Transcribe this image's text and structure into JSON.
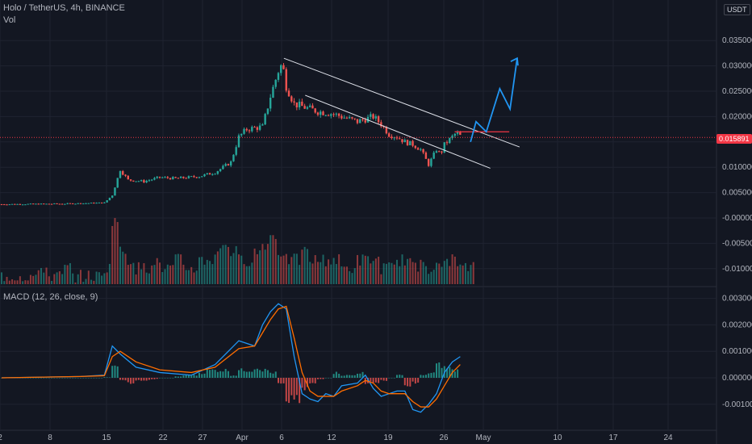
{
  "header": {
    "symbol_line": "Holo / TetherUS, 4h, BINANCE",
    "vol_label": "Vol",
    "macd_label": "MACD (12, 26, close, 9)",
    "currency_badge": "USDT",
    "price_badge": "0.015891"
  },
  "colors": {
    "background": "#131722",
    "grid": "#1f2330",
    "up": "#26a69a",
    "down": "#ef5350",
    "macd_line": "#2196f3",
    "signal_line": "#ff6d00",
    "trendline": "#e0e3eb",
    "resistance": "#f23645",
    "projection": "#2196f3"
  },
  "chart_data": [
    {
      "type": "candlestick",
      "title": "Holo / TetherUS, 4h, BINANCE",
      "x_ticks": [
        "2",
        "8",
        "15",
        "22",
        "27",
        "Apr",
        "6",
        "12",
        "19",
        "26",
        "May",
        "10",
        "17",
        "24"
      ],
      "y_ticks": [
        "0.035000",
        "0.030000",
        "0.025000",
        "0.020000",
        "0.015000",
        "0.010000",
        "0.005000",
        "-0.000000",
        "-0.005000",
        "-0.010000"
      ],
      "ylim": [
        -0.0125,
        0.04
      ],
      "close_path": [
        [
          0,
          0.0027
        ],
        [
          8,
          0.0028
        ],
        [
          13,
          0.003
        ],
        [
          14,
          0.0045
        ],
        [
          15,
          0.0095
        ],
        [
          16,
          0.0075
        ],
        [
          18,
          0.0072
        ],
        [
          20,
          0.008
        ],
        [
          22,
          0.0078
        ],
        [
          25,
          0.0082
        ],
        [
          27,
          0.009
        ],
        [
          29,
          0.011
        ],
        [
          30,
          0.016
        ],
        [
          31,
          0.0175
        ],
        [
          33,
          0.018
        ],
        [
          34,
          0.024
        ],
        [
          35,
          0.029
        ],
        [
          35.5,
          0.0305
        ],
        [
          36,
          0.026
        ],
        [
          37,
          0.0225
        ],
        [
          38,
          0.022
        ],
        [
          39,
          0.0215
        ],
        [
          40,
          0.021
        ],
        [
          41,
          0.0208
        ],
        [
          42,
          0.0205
        ],
        [
          43,
          0.02
        ],
        [
          44,
          0.0195
        ],
        [
          45,
          0.019
        ],
        [
          46,
          0.0195
        ],
        [
          47,
          0.02
        ],
        [
          48,
          0.0185
        ],
        [
          49,
          0.0165
        ],
        [
          50,
          0.016
        ],
        [
          51,
          0.015
        ],
        [
          52,
          0.0145
        ],
        [
          53,
          0.0135
        ],
        [
          54,
          0.0105
        ],
        [
          55,
          0.0135
        ],
        [
          55.5,
          0.0125
        ],
        [
          56,
          0.0145
        ],
        [
          57,
          0.016
        ],
        [
          57.5,
          0.0168
        ],
        [
          58.3,
          0.0158
        ]
      ],
      "trendlines": [
        {
          "from": [
            35.7,
            0.0315
          ],
          "to": [
            65.5,
            0.014
          ]
        },
        {
          "from": [
            38.4,
            0.0242
          ],
          "to": [
            61.8,
            0.0098
          ]
        }
      ],
      "resistance": {
        "from": [
          57.3,
          0.017
        ],
        "to": [
          64.2,
          0.017
        ]
      },
      "projection_path": [
        [
          59.3,
          0.015
        ],
        [
          60.0,
          0.019
        ],
        [
          61.3,
          0.017
        ],
        [
          63.0,
          0.0255
        ],
        [
          64.3,
          0.0215
        ],
        [
          65.2,
          0.0315
        ]
      ],
      "current_price": 0.015891
    },
    {
      "type": "bar",
      "title": "Vol",
      "values": [
        1,
        1,
        1,
        1,
        1,
        2,
        1,
        1,
        2,
        1,
        1,
        1,
        1,
        2,
        8,
        4,
        3,
        2,
        2,
        3,
        2,
        2,
        3,
        2,
        2,
        3,
        3,
        4,
        5,
        4,
        3,
        3,
        4,
        5,
        6,
        4,
        3,
        3,
        4,
        3,
        3,
        3,
        3,
        2,
        2,
        3,
        3,
        3,
        2,
        2,
        3,
        3,
        2,
        3,
        2,
        2,
        3,
        3,
        2,
        2
      ]
    },
    {
      "type": "line",
      "title": "MACD (12, 26, close, 9)",
      "y_ticks": [
        "0.003000",
        "0.002000",
        "0.001000",
        "0.000000",
        "-0.001000"
      ],
      "ylim": [
        -0.0015,
        0.0032
      ],
      "series": [
        {
          "key": "macd",
          "points": [
            [
              0,
              0.0
            ],
            [
              10,
              5e-05
            ],
            [
              13,
              0.0001
            ],
            [
              14,
              0.0012
            ],
            [
              15,
              0.0009
            ],
            [
              17,
              0.0004
            ],
            [
              20,
              0.0002
            ],
            [
              24,
              0.0001
            ],
            [
              27,
              0.0005
            ],
            [
              30,
              0.0014
            ],
            [
              32,
              0.0012
            ],
            [
              33,
              0.002
            ],
            [
              34,
              0.0025
            ],
            [
              35,
              0.0028
            ],
            [
              36,
              0.0026
            ],
            [
              37,
              0.0008
            ],
            [
              38,
              -0.0006
            ],
            [
              39,
              -0.0008
            ],
            [
              40,
              -0.0009
            ],
            [
              41,
              -0.0006
            ],
            [
              42,
              -0.0007
            ],
            [
              43,
              -0.0003
            ],
            [
              45,
              -0.0002
            ],
            [
              46,
              0.0001
            ],
            [
              47,
              -0.0004
            ],
            [
              48,
              -0.0007
            ],
            [
              49,
              -0.0006
            ],
            [
              50,
              -0.0005
            ],
            [
              51,
              -0.0005
            ],
            [
              52,
              -0.0012
            ],
            [
              53,
              -0.0013
            ],
            [
              54,
              -0.001
            ],
            [
              55,
              -0.0006
            ],
            [
              56,
              0.0002
            ],
            [
              57,
              0.0006
            ],
            [
              58,
              0.0008
            ]
          ]
        },
        {
          "key": "signal",
          "points": [
            [
              0,
              0.0
            ],
            [
              10,
              5e-05
            ],
            [
              13,
              8e-05
            ],
            [
              14,
              0.0008
            ],
            [
              15,
              0.001
            ],
            [
              17,
              0.0006
            ],
            [
              20,
              0.0003
            ],
            [
              24,
              0.0002
            ],
            [
              27,
              0.0004
            ],
            [
              30,
              0.0011
            ],
            [
              32,
              0.0012
            ],
            [
              33,
              0.0017
            ],
            [
              34,
              0.0022
            ],
            [
              35,
              0.0026
            ],
            [
              36,
              0.0027
            ],
            [
              37,
              0.0015
            ],
            [
              38,
              0.0002
            ],
            [
              39,
              -0.0005
            ],
            [
              40,
              -0.0007
            ],
            [
              41,
              -0.0007
            ],
            [
              42,
              -0.0007
            ],
            [
              43,
              -0.0005
            ],
            [
              45,
              -0.0003
            ],
            [
              46,
              -0.0001
            ],
            [
              47,
              -0.0002
            ],
            [
              48,
              -0.0005
            ],
            [
              49,
              -0.0006
            ],
            [
              50,
              -0.0006
            ],
            [
              51,
              -0.0006
            ],
            [
              52,
              -0.0009
            ],
            [
              53,
              -0.0011
            ],
            [
              54,
              -0.0011
            ],
            [
              55,
              -0.0008
            ],
            [
              56,
              -0.0003
            ],
            [
              57,
              0.0002
            ],
            [
              58,
              0.0005
            ]
          ]
        }
      ],
      "histogram": [
        0.0,
        0.0,
        0.0,
        0.0,
        0.0,
        0.0,
        0.0,
        0.0,
        0.0,
        0.0,
        0.0,
        0.0,
        0.0,
        2e-05,
        0.0004,
        -0.0001,
        -0.0002,
        -0.0001,
        -0.0001,
        -5e-05,
        0.0,
        0.0,
        5e-05,
        0.0001,
        0.0001,
        0.0002,
        0.0003,
        0.0003,
        0.0003,
        0.0001,
        0.0003,
        0.0003,
        0.0004,
        0.0003,
        0.0002,
        -0.0002,
        -0.0008,
        -0.0008,
        -0.0004,
        -0.0002,
        -5e-05,
        0.0,
        0.0002,
        0.0001,
        0.0001,
        0.0002,
        -0.0002,
        -0.0002,
        -0.0001,
        0.0,
        0.0001,
        -0.0003,
        -0.0002,
        0.0001,
        0.0002,
        0.0005,
        0.0004,
        0.0003
      ]
    }
  ]
}
